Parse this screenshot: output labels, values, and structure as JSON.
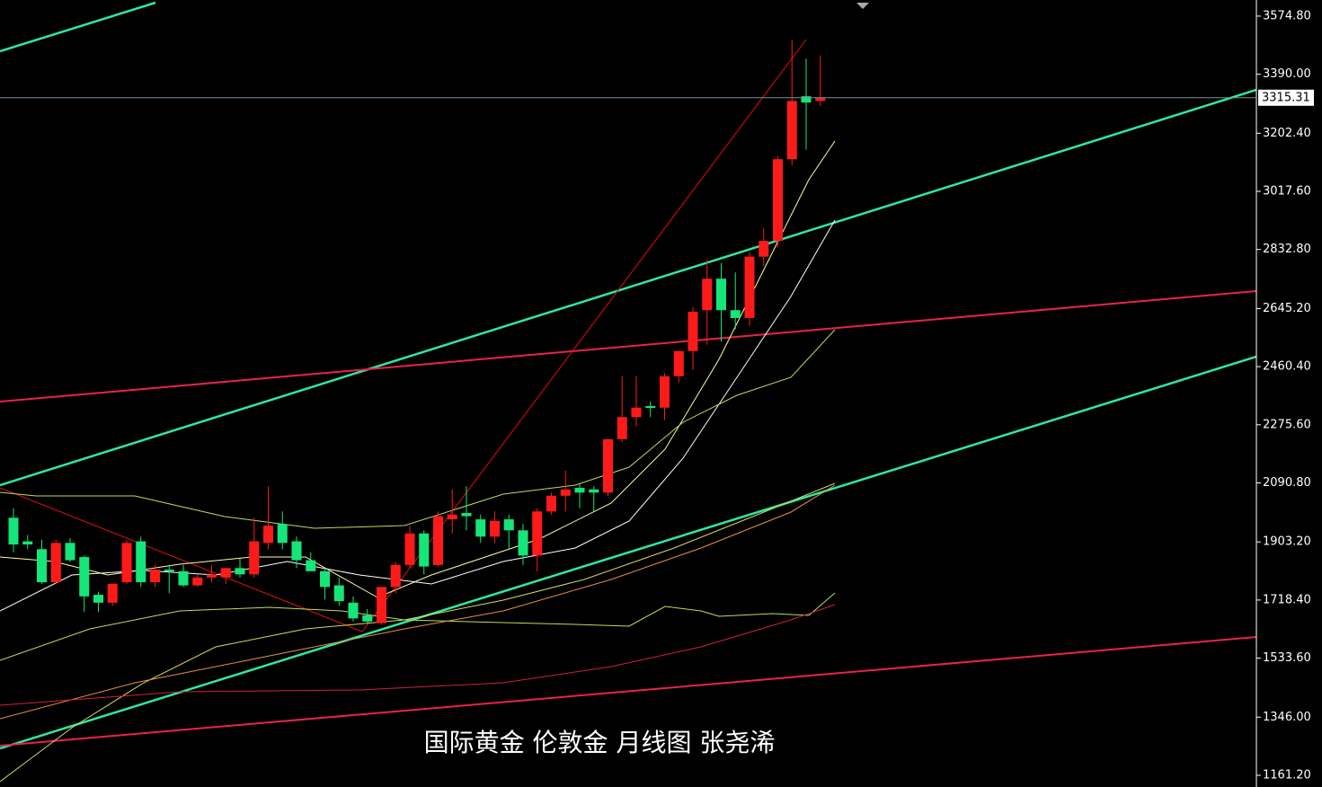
{
  "chart_data": {
    "type": "candlestick",
    "title": "国际黄金 伦敦金 月线图 张尧浠",
    "up_color": "#ff1a1a",
    "down_color": "#14e67a",
    "open": [
      1980,
      1905,
      1880,
      1775,
      1900,
      1855,
      1735,
      1710,
      1775,
      1905,
      1775,
      1815,
      1810,
      1765,
      1790,
      1790,
      1820,
      1800,
      1900,
      1960,
      1905,
      1845,
      1810,
      1765,
      1710,
      1670,
      1645,
      1760,
      1830,
      1930,
      1830,
      1975,
      1995,
      1975,
      1920,
      1975,
      1940,
      1860,
      2000,
      2050,
      2075,
      2070,
      2060,
      2230,
      2300,
      2335,
      2330,
      2430,
      2510,
      2640,
      2740,
      2640,
      2615,
      2810,
      2860,
      3120,
      3320,
      3305
    ],
    "high": [
      2010,
      1925,
      1910,
      1910,
      1915,
      1860,
      1745,
      1770,
      1910,
      1920,
      1830,
      1830,
      1830,
      1800,
      1830,
      1820,
      1850,
      1980,
      2080,
      2000,
      1920,
      1870,
      1820,
      1790,
      1730,
      1690,
      1760,
      1840,
      1955,
      1940,
      2000,
      2070,
      2080,
      1990,
      2000,
      1990,
      1960,
      2010,
      2060,
      2130,
      2090,
      2080,
      2230,
      2430,
      2430,
      2350,
      2440,
      2510,
      2650,
      2800,
      2790,
      2760,
      2825,
      2900,
      3130,
      3500,
      3440,
      3450
    ],
    "low": [
      1870,
      1880,
      1770,
      1770,
      1840,
      1680,
      1680,
      1700,
      1770,
      1760,
      1760,
      1740,
      1760,
      1760,
      1775,
      1770,
      1790,
      1790,
      1880,
      1880,
      1820,
      1810,
      1720,
      1700,
      1650,
      1645,
      1640,
      1740,
      1820,
      1800,
      1825,
      1930,
      1940,
      1900,
      1900,
      1880,
      1830,
      1810,
      1990,
      2000,
      2010,
      2000,
      2050,
      2220,
      2270,
      2300,
      2290,
      2410,
      2450,
      2530,
      2540,
      2580,
      2590,
      2780,
      2840,
      3100,
      3150,
      3290
    ],
    "close": [
      1895,
      1895,
      1775,
      1900,
      1845,
      1730,
      1710,
      1770,
      1900,
      1775,
      1815,
      1810,
      1765,
      1790,
      1800,
      1820,
      1800,
      1905,
      1955,
      1900,
      1845,
      1810,
      1760,
      1715,
      1660,
      1650,
      1760,
      1830,
      1930,
      1825,
      1985,
      1990,
      1985,
      1920,
      1970,
      1940,
      1860,
      2000,
      2050,
      2070,
      2060,
      2060,
      2230,
      2300,
      2330,
      2330,
      2430,
      2510,
      2635,
      2740,
      2640,
      2615,
      2810,
      2860,
      3120,
      3305,
      3300,
      3315.31
    ],
    "last_price": 3315.31,
    "ylim": [
      1124,
      3626
    ],
    "yticks": [
      {
        "value": 3574.8,
        "label": "3574.80"
      },
      {
        "value": 3390,
        "label": "3390.00"
      },
      {
        "value": 3202.4,
        "label": "3202.40"
      },
      {
        "value": 3017.6,
        "label": "3017.60"
      },
      {
        "value": 2832.8,
        "label": "2832.80"
      },
      {
        "value": 2645.2,
        "label": "2645.20"
      },
      {
        "value": 2460.4,
        "label": "2460.40"
      },
      {
        "value": 2275.6,
        "label": "2275.60"
      },
      {
        "value": 2090.8,
        "label": "2090.80"
      },
      {
        "value": 1903.2,
        "label": "1903.20"
      },
      {
        "value": 1718.4,
        "label": "1718.40"
      },
      {
        "value": 1533.6,
        "label": "1533.60"
      },
      {
        "value": 1346,
        "label": "1346.00"
      },
      {
        "value": 1161.2,
        "label": "1161.20"
      }
    ]
  }
}
